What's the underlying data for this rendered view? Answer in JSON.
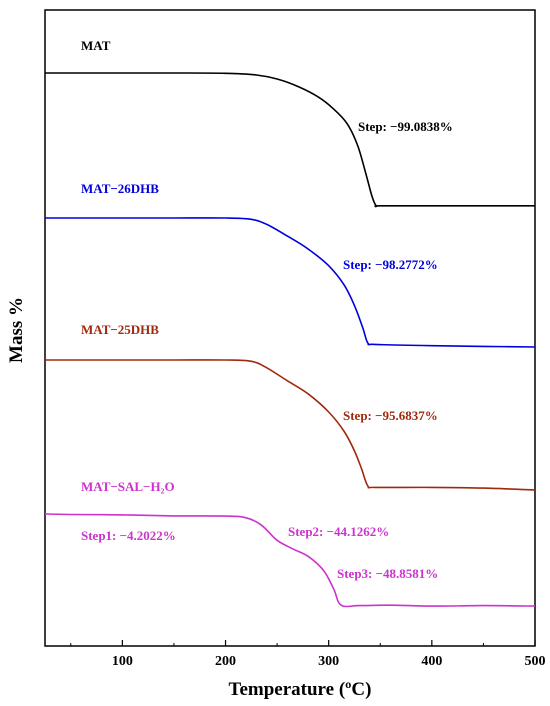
{
  "chart_data": {
    "type": "line",
    "xlabel": "Temperature (ºC)",
    "ylabel": "Mass  %",
    "xlim": [
      25,
      500
    ],
    "x_ticks": [
      "100",
      "200",
      "300",
      "400",
      "500"
    ],
    "grid": false,
    "series": [
      {
        "name": "MAT",
        "color": "#000000",
        "x": [
          25,
          50,
          100,
          150,
          200,
          230,
          250,
          270,
          290,
          305,
          318,
          328,
          336,
          342,
          346,
          350,
          400,
          450,
          500
        ],
        "values": [
          100,
          100,
          100,
          100,
          99.8,
          98.5,
          95.5,
          90,
          82,
          73,
          62,
          46,
          25,
          8,
          0.9,
          0.9,
          0.9,
          0.9,
          0.9
        ],
        "annotations": [
          "Step: −99.0838%"
        ]
      },
      {
        "name": "MAT−26DHB",
        "color": "#0000dd",
        "x": [
          25,
          50,
          100,
          150,
          200,
          225,
          240,
          260,
          280,
          300,
          315,
          325,
          333,
          338,
          345,
          400,
          450,
          500
        ],
        "values": [
          100,
          100,
          100,
          100,
          100,
          99,
          95,
          86,
          76,
          63,
          48,
          32,
          15,
          3,
          2,
          1,
          0.5,
          0
        ],
        "annotations": [
          "Step: −98.2772%"
        ]
      },
      {
        "name": "MAT−25DHB",
        "color": "#a0290d",
        "x": [
          25,
          50,
          100,
          150,
          200,
          225,
          240,
          260,
          280,
          300,
          315,
          325,
          332,
          338,
          345,
          400,
          450,
          500
        ],
        "values": [
          100,
          100,
          100,
          100,
          100,
          99,
          94,
          84,
          74,
          60,
          45,
          30,
          16,
          3,
          2,
          2,
          1.5,
          0
        ],
        "annotations": [
          "Step: −95.6837%"
        ]
      },
      {
        "name": "MAT−SAL−H₂O",
        "color": "#cc33cc",
        "x": [
          25,
          50,
          100,
          150,
          200,
          220,
          235,
          250,
          265,
          280,
          295,
          305,
          312,
          330,
          360,
          400,
          450,
          500
        ],
        "values": [
          100,
          99.5,
          99,
          98,
          97.8,
          96,
          88,
          72,
          63,
          55,
          40,
          20,
          3,
          2.5,
          3,
          2,
          2.5,
          2
        ],
        "annotations": [
          "Step1:  −4.2022%",
          "Step2:  −44.1262%",
          "Step3:  −48.8581%"
        ]
      }
    ]
  }
}
